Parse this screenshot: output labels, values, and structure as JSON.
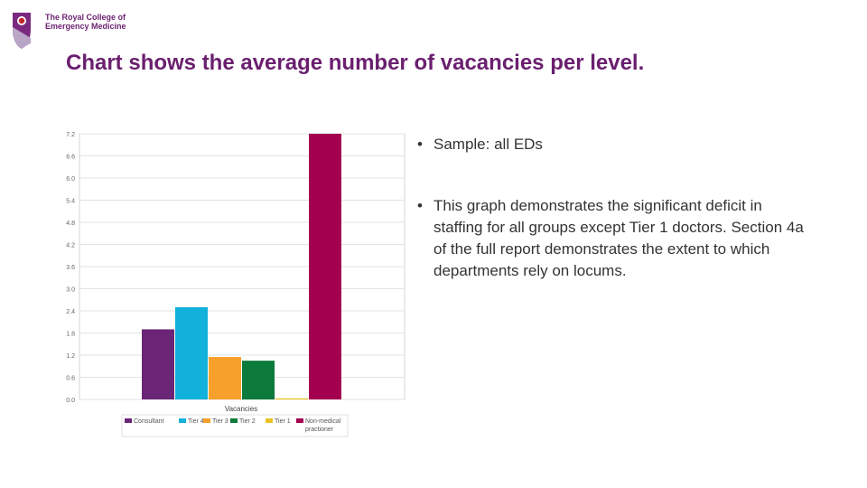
{
  "header": {
    "logo_lines": [
      "The Royal College of",
      "Emergency Medicine"
    ],
    "title": "Chart shows the average number of vacancies per level."
  },
  "colors": {
    "brand": "#6a1f6f",
    "grid": "#e3e3e3",
    "axis_text": "#666666"
  },
  "bullets": [
    "Sample: all EDs",
    "This graph demonstrates the significant deficit in staffing for all groups except Tier 1 doctors. Section 4a of the full report demonstrates the extent to which departments rely on locums."
  ],
  "chart_data": {
    "type": "bar",
    "title": "",
    "xlabel": "Vacancies",
    "ylabel": "",
    "ylim": [
      0,
      7.2
    ],
    "yticks": [
      "0.0",
      "0.6",
      "1.2",
      "1.8",
      "2.4",
      "3.0",
      "3.6",
      "4.2",
      "4.8",
      "5.4",
      "6.0",
      "6.6",
      "7.2"
    ],
    "grid": true,
    "legend_position": "bottom",
    "categories": [
      "Vacancies"
    ],
    "series": [
      {
        "name": "Consultant",
        "values": [
          1.9
        ],
        "color": "#6b2576"
      },
      {
        "name": "Tier 4",
        "values": [
          2.5
        ],
        "color": "#12b1dc"
      },
      {
        "name": "Tier 3",
        "values": [
          1.15
        ],
        "color": "#f7a12c"
      },
      {
        "name": "Tier 2",
        "values": [
          1.05
        ],
        "color": "#0b7a3a"
      },
      {
        "name": "Tier 1",
        "values": [
          0.03
        ],
        "color": "#e8c322"
      },
      {
        "name": "Non-medical practioner",
        "values": [
          7.2
        ],
        "color": "#a3004f"
      }
    ]
  }
}
